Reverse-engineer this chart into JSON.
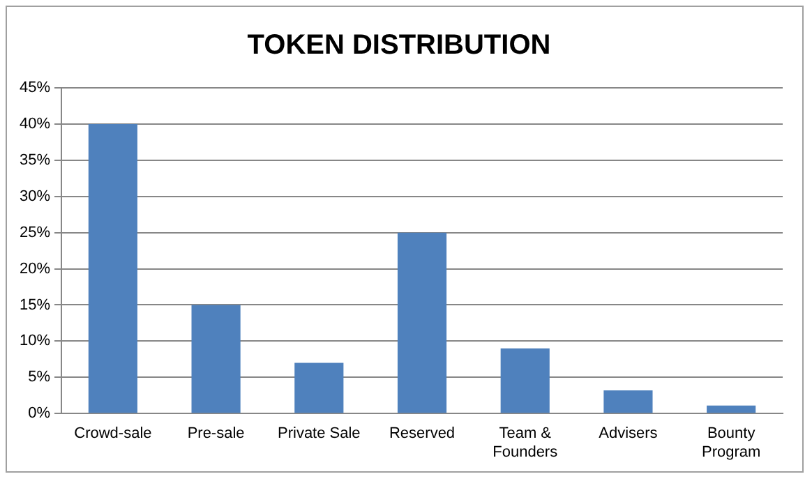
{
  "chart_data": {
    "type": "bar",
    "title": "TOKEN DISTRIBUTION",
    "categories": [
      "Crowd-sale",
      "Pre-sale",
      "Private Sale",
      "Reserved",
      "Team & Founders",
      "Advisers",
      "Bounty Program"
    ],
    "values": [
      40,
      15,
      7,
      25,
      9,
      3.2,
      1.1
    ],
    "color": "#4f81bd",
    "ylim": [
      0,
      45
    ],
    "yticks": [
      {
        "value": 0,
        "label": "0%"
      },
      {
        "value": 5,
        "label": "5%"
      },
      {
        "value": 10,
        "label": "10%"
      },
      {
        "value": 15,
        "label": "15%"
      },
      {
        "value": 20,
        "label": "20%"
      },
      {
        "value": 25,
        "label": "25%"
      },
      {
        "value": 30,
        "label": "30%"
      },
      {
        "value": 35,
        "label": "35%"
      },
      {
        "value": 40,
        "label": "40%"
      },
      {
        "value": 45,
        "label": "45%"
      }
    ],
    "grid": "y",
    "legend": false
  }
}
